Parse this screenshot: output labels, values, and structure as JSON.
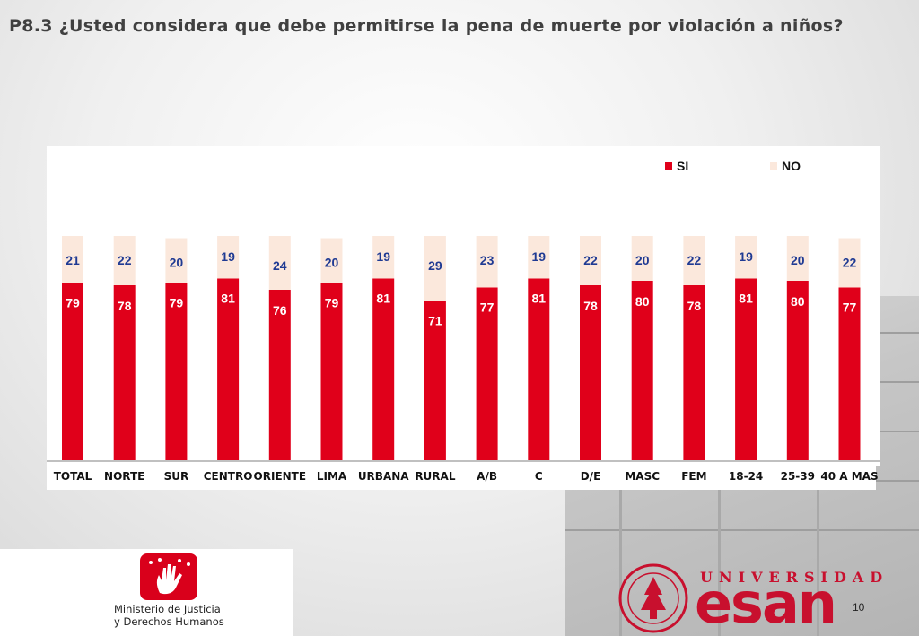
{
  "slide": {
    "title": "P8.3 ¿Usted considera que debe permitirse la pena de muerte por violación a niños?",
    "page_number": "10"
  },
  "logos": {
    "ministry": [
      "Ministerio de Justicia",
      "y Derechos Humanos"
    ],
    "university_label": "UNIVERSIDAD",
    "university_name": "esan"
  },
  "colors": {
    "si": "#e0001a",
    "no": "#fbe8dc",
    "si_label": "#ffffff",
    "no_label": "#1f3a93"
  },
  "chart_data": {
    "type": "bar",
    "stacked": true,
    "title": "",
    "xlabel": "",
    "ylabel": "",
    "ylim": [
      0,
      100
    ],
    "grid": false,
    "legend_position": "top-right",
    "categories": [
      "TOTAL",
      "NORTE",
      "SUR",
      "CENTRO",
      "ORIENTE",
      "LIMA",
      "URBANA",
      "RURAL",
      "A/B",
      "C",
      "D/E",
      "MASC",
      "FEM",
      "18-24",
      "25-39",
      "40 A MAS"
    ],
    "series": [
      {
        "name": "SI",
        "values": [
          79,
          78,
          79,
          81,
          76,
          79,
          81,
          71,
          77,
          81,
          78,
          80,
          78,
          81,
          80,
          77
        ]
      },
      {
        "name": "NO",
        "values": [
          21,
          22,
          20,
          19,
          24,
          20,
          19,
          29,
          23,
          19,
          22,
          20,
          22,
          19,
          20,
          22
        ]
      }
    ]
  }
}
